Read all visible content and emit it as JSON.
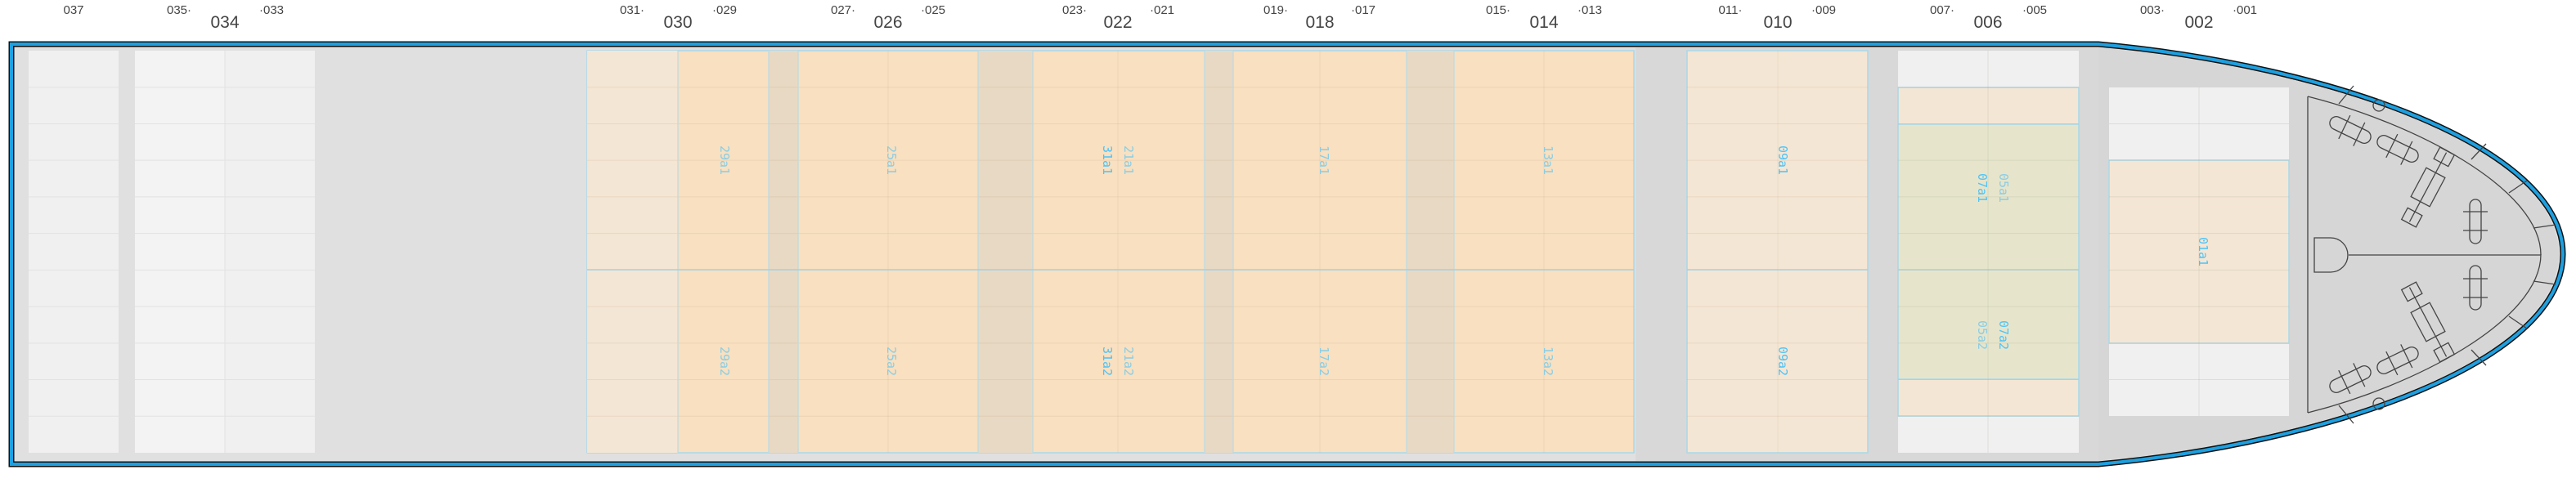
{
  "colors": {
    "hull_stroke": "#1ea0e0",
    "deck_gray": "#e0e0e0",
    "bow_gray": "#d6d6d6",
    "empty_cell": "#f0f0f0",
    "tan_light": "#f4e6d4",
    "tan": "#f8e0c0",
    "tan_gap": "#e8d9c4",
    "green": "#e6e5cb",
    "label_faded": "#8ccde4",
    "label_active": "#4fc3f7",
    "bay_text": "#444444"
  },
  "bays": [
    {
      "big": "",
      "left": "037",
      "right": ""
    },
    {
      "big": "034",
      "left": "035·",
      "right": "·033"
    },
    {
      "big": "030",
      "left": "031·",
      "right": "·029"
    },
    {
      "big": "026",
      "left": "027·",
      "right": "·025"
    },
    {
      "big": "022",
      "left": "023·",
      "right": "·021"
    },
    {
      "big": "018",
      "left": "019·",
      "right": "·017"
    },
    {
      "big": "014",
      "left": "015·",
      "right": "·013"
    },
    {
      "big": "010",
      "left": "011·",
      "right": "·009"
    },
    {
      "big": "006",
      "left": "007·",
      "right": "·005"
    },
    {
      "big": "002",
      "left": "003·",
      "right": "·001"
    }
  ],
  "slots": [
    {
      "text": "29a1",
      "state": "faded"
    },
    {
      "text": "29a2",
      "state": "faded"
    },
    {
      "text": "25a1",
      "state": "faded"
    },
    {
      "text": "25a2",
      "state": "faded"
    },
    {
      "text": "21a1",
      "state": "faded"
    },
    {
      "text": "31a1",
      "state": "active"
    },
    {
      "text": "21a2",
      "state": "faded"
    },
    {
      "text": "31a2",
      "state": "active"
    },
    {
      "text": "17a1",
      "state": "faded"
    },
    {
      "text": "17a2",
      "state": "faded"
    },
    {
      "text": "13a1",
      "state": "faded"
    },
    {
      "text": "13a2",
      "state": "faded"
    },
    {
      "text": "09a1",
      "state": "active"
    },
    {
      "text": "09a2",
      "state": "active"
    },
    {
      "text": "07a1",
      "state": "active"
    },
    {
      "text": "05a1",
      "state": "faded"
    },
    {
      "text": "05a2",
      "state": "faded"
    },
    {
      "text": "07a2",
      "state": "active"
    },
    {
      "text": "01a1",
      "state": "active"
    }
  ]
}
